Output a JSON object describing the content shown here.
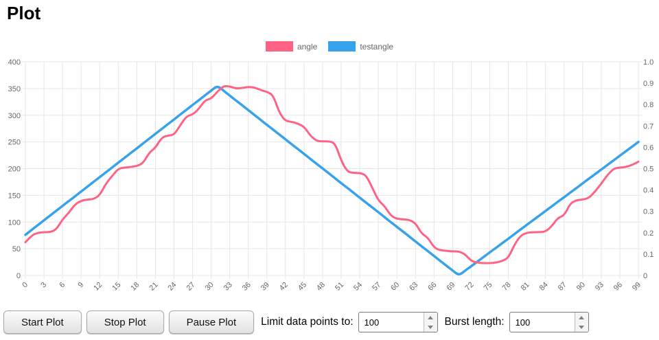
{
  "title": "Plot",
  "chart_data": {
    "type": "line",
    "grid": true,
    "grid_color": "#e5e5e5",
    "tick_color": "#666666",
    "x_tick_step": 3,
    "x_tick_labels": [
      "0",
      "3",
      "6",
      "9",
      "12",
      "15",
      "18",
      "21",
      "24",
      "27",
      "30",
      "33",
      "36",
      "39",
      "42",
      "45",
      "48",
      "51",
      "54",
      "57",
      "60",
      "63",
      "66",
      "69",
      "72",
      "75",
      "78",
      "81",
      "84",
      "87",
      "90",
      "93",
      "96",
      "99"
    ],
    "left_axis": {
      "min": 0,
      "max": 400,
      "ticks": [
        "400",
        "350",
        "300",
        "250",
        "200",
        "150",
        "100",
        "50",
        "0"
      ]
    },
    "right_axis": {
      "min": 0,
      "max": 1,
      "ticks": [
        "1.0",
        "0.9",
        "0.8",
        "0.7",
        "0.6",
        "0.5",
        "0.4",
        "0.3",
        "0.2",
        "0.1",
        "0"
      ]
    },
    "legend_position": "top-center",
    "series": [
      {
        "name": "angle",
        "color": "#ff6384",
        "axis": "left",
        "width": 3,
        "values": [
          62,
          75,
          80,
          81,
          81,
          86,
          105,
          117,
          133,
          140,
          142,
          143,
          150,
          172,
          186,
          200,
          202,
          203,
          205,
          210,
          230,
          239,
          258,
          262,
          263,
          281,
          298,
          301,
          312,
          328,
          331,
          344,
          355,
          354,
          350,
          351,
          353,
          352,
          347,
          344,
          338,
          305,
          289,
          288,
          284,
          279,
          262,
          252,
          251,
          251,
          248,
          215,
          194,
          192,
          192,
          188,
          165,
          140,
          130,
          112,
          106,
          105,
          104,
          98,
          78,
          71,
          52,
          47,
          46,
          45,
          45,
          40,
          27,
          24,
          23,
          23,
          24,
          27,
          33,
          58,
          75,
          80,
          81,
          81,
          82,
          92,
          108,
          112,
          135,
          141,
          142,
          145,
          157,
          172,
          188,
          200,
          202,
          203,
          207,
          213
        ]
      },
      {
        "name": "testangle",
        "color": "#36a2eb",
        "axis": "right",
        "width": 3.5,
        "values": [
          0.19,
          0.213,
          0.235,
          0.258,
          0.28,
          0.303,
          0.325,
          0.348,
          0.37,
          0.393,
          0.415,
          0.438,
          0.46,
          0.483,
          0.505,
          0.528,
          0.55,
          0.573,
          0.595,
          0.618,
          0.64,
          0.663,
          0.685,
          0.708,
          0.73,
          0.753,
          0.775,
          0.798,
          0.82,
          0.843,
          0.865,
          0.888,
          0.865,
          0.842,
          0.819,
          0.797,
          0.774,
          0.751,
          0.728,
          0.705,
          0.683,
          0.66,
          0.637,
          0.614,
          0.592,
          0.569,
          0.546,
          0.523,
          0.501,
          0.478,
          0.455,
          0.432,
          0.41,
          0.387,
          0.364,
          0.341,
          0.319,
          0.296,
          0.273,
          0.25,
          0.227,
          0.205,
          0.182,
          0.159,
          0.136,
          0.114,
          0.091,
          0.068,
          0.045,
          0.023,
          0,
          0.022,
          0.043,
          0.065,
          0.086,
          0.108,
          0.129,
          0.151,
          0.172,
          0.194,
          0.216,
          0.237,
          0.259,
          0.28,
          0.302,
          0.323,
          0.345,
          0.366,
          0.388,
          0.409,
          0.431,
          0.453,
          0.474,
          0.496,
          0.517,
          0.539,
          0.56,
          0.582,
          0.603,
          0.625
        ]
      }
    ]
  },
  "controls": {
    "start_label": "Start Plot",
    "stop_label": "Stop Plot",
    "pause_label": "Pause Plot",
    "limit_label": "Limit data points to:",
    "limit_value": "100",
    "burst_label": "Burst length:",
    "burst_value": "100"
  }
}
